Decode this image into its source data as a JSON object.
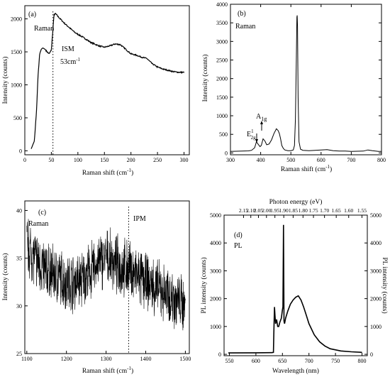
{
  "chart_data": [
    {
      "panel": "(a)",
      "type": "line",
      "xlabel": "Raman shift (cm",
      "xlabel_sup": "-1",
      "xlabel_end": ")",
      "ylabel": "Intensity (counts)",
      "xlim": [
        0,
        310
      ],
      "ylim": [
        -60,
        2200
      ],
      "xticks": [
        0,
        50,
        100,
        150,
        200,
        250,
        300
      ],
      "yticks": [
        0,
        500,
        1000,
        1500,
        2000
      ],
      "annotations": {
        "raman": "Raman",
        "peak_name": "ISM",
        "peak_value": "53cm",
        "peak_value_sup": "-1"
      },
      "marker_x": 53,
      "x": [
        12,
        18,
        22,
        25,
        28,
        31,
        34,
        38,
        42,
        46,
        50,
        53,
        55,
        58,
        62,
        68,
        75,
        85,
        95,
        110,
        125,
        140,
        150,
        160,
        170,
        180,
        190,
        200,
        210,
        220,
        230,
        240,
        250,
        260,
        270,
        280,
        290,
        300
      ],
      "y": [
        30,
        150,
        600,
        1150,
        1470,
        1540,
        1560,
        1540,
        1500,
        1470,
        1530,
        1850,
        2060,
        2080,
        2040,
        1990,
        1930,
        1860,
        1790,
        1720,
        1640,
        1590,
        1570,
        1590,
        1620,
        1610,
        1540,
        1470,
        1450,
        1420,
        1400,
        1320,
        1270,
        1240,
        1220,
        1200,
        1190,
        1190
      ]
    },
    {
      "panel": "(b)",
      "type": "line",
      "xlabel": "Raman shift (cm",
      "xlabel_sup": "-1",
      "xlabel_end": ")",
      "ylabel": "Intensity (counts)",
      "xlim": [
        300,
        800
      ],
      "ylim": [
        -50,
        4000
      ],
      "xticks": [
        300,
        400,
        500,
        600,
        700,
        800
      ],
      "yticks": [
        0,
        500,
        1000,
        1500,
        2000,
        2500,
        3000,
        3500,
        4000
      ],
      "annotations": {
        "raman": "Raman",
        "e2g": "E",
        "e2g_sup": "1",
        "e2g_sub": "2g",
        "a1g": "A",
        "a1g_sub": "1g"
      },
      "x": [
        300,
        320,
        340,
        360,
        370,
        380,
        386,
        392,
        398,
        402,
        408,
        414,
        420,
        428,
        436,
        444,
        452,
        458,
        462,
        466,
        470,
        475,
        480,
        490,
        500,
        508,
        512,
        515,
        518,
        520,
        521,
        522,
        524,
        527,
        532,
        540,
        560,
        580,
        600,
        620,
        640,
        660,
        680,
        700,
        720,
        740,
        755,
        770,
        790,
        800
      ],
      "y": [
        40,
        45,
        50,
        55,
        70,
        140,
        300,
        230,
        170,
        200,
        380,
        320,
        220,
        240,
        350,
        520,
        650,
        600,
        520,
        380,
        200,
        120,
        80,
        60,
        60,
        80,
        200,
        900,
        2500,
        3650,
        3700,
        3400,
        1500,
        300,
        100,
        70,
        60,
        70,
        80,
        90,
        60,
        50,
        50,
        40,
        45,
        50,
        80,
        60,
        40,
        40
      ]
    },
    {
      "panel": "(c)",
      "type": "line",
      "xlabel": "Raman shift (cm",
      "xlabel_sup": "-1",
      "xlabel_end": ")",
      "ylabel": "Intensity (counts)",
      "xlim": [
        1095,
        1510
      ],
      "ylim": [
        25,
        41
      ],
      "xticks": [
        1100,
        1200,
        1300,
        1400,
        1500
      ],
      "yticks": [
        25,
        30,
        35,
        40
      ],
      "annotations": {
        "raman": "Raman",
        "peak_name": "IPM"
      },
      "marker_x": 1357,
      "x": [
        1100,
        1120,
        1140,
        1160,
        1180,
        1200,
        1220,
        1240,
        1260,
        1280,
        1300,
        1320,
        1340,
        1360,
        1380,
        1400,
        1420,
        1440,
        1460,
        1480,
        1500
      ],
      "y": [
        36.5,
        35.0,
        34.0,
        33.5,
        33.0,
        32.5,
        32.5,
        32.8,
        33.5,
        34.5,
        35.0,
        34.5,
        34.0,
        33.8,
        33.0,
        32.5,
        32.0,
        31.5,
        31.0,
        30.5,
        30.0
      ]
    },
    {
      "panel": "(d)",
      "type": "line",
      "xlabel": "Wavelength (nm)",
      "ylabel": "PL intensity (counts)",
      "ylabel_right": "PL intensity (counts)",
      "top_label": "Photon energy (eV)",
      "xlim": [
        540,
        810
      ],
      "ylim": [
        -50,
        5000
      ],
      "xticks": [
        550,
        600,
        650,
        700,
        750,
        800
      ],
      "yticks": [
        0,
        1000,
        2000,
        3000,
        4000,
        5000
      ],
      "top_ticks": [
        "2.15",
        "2.10",
        "2.05",
        "2.00",
        "1.95",
        "1.90",
        "1.85",
        "1.80",
        "1.75",
        "1.70",
        "1.65",
        "1.60",
        "1.55"
      ],
      "top_tick_values": [
        2.15,
        2.1,
        2.05,
        2.0,
        1.95,
        1.9,
        1.85,
        1.8,
        1.75,
        1.7,
        1.65,
        1.6,
        1.55
      ],
      "annotations": {
        "pl": "PL"
      },
      "x": [
        548,
        600,
        630,
        633,
        634,
        635,
        636,
        637,
        639,
        641,
        643,
        645,
        648,
        650,
        651,
        652,
        653,
        654,
        656,
        660,
        665,
        670,
        675,
        680,
        685,
        690,
        695,
        700,
        710,
        720,
        730,
        740,
        760,
        780,
        800
      ],
      "y": [
        50,
        55,
        60,
        70,
        900,
        1700,
        1400,
        1100,
        1250,
        1000,
        1000,
        1150,
        1300,
        1600,
        1700,
        4650,
        1200,
        1100,
        1300,
        1550,
        1800,
        1950,
        2050,
        2100,
        1950,
        1700,
        1400,
        1100,
        700,
        450,
        300,
        200,
        120,
        90,
        70
      ]
    }
  ]
}
